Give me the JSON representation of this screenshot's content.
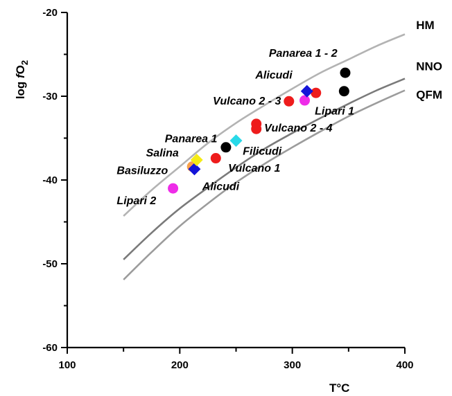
{
  "chart_data": {
    "type": "scatter",
    "title": "",
    "xlabel": "T°C",
    "ylabel_parts": [
      "log ",
      "f",
      "O",
      "2"
    ],
    "xlim": [
      100,
      400
    ],
    "ylim": [
      -60,
      -20
    ],
    "x_ticks": [
      100,
      200,
      300,
      400
    ],
    "x_tick_labels": [
      "100",
      "200",
      "300",
      "400"
    ],
    "y_ticks": [
      -60,
      -50,
      -40,
      -30,
      -20
    ],
    "y_tick_labels": [
      "-60",
      "-50",
      "-40",
      "-30",
      "-20"
    ],
    "grid": false,
    "buffers": [
      {
        "name": "HM",
        "color": "#b3b3b3",
        "x": [
          150,
          175,
          200,
          225,
          250,
          275,
          300,
          325,
          350,
          375,
          400
        ],
        "y": [
          -44.3,
          -41.2,
          -38.4,
          -35.6,
          -33.2,
          -31.1,
          -29.1,
          -27.2,
          -25.6,
          -24.0,
          -22.6
        ]
      },
      {
        "name": "NNO",
        "color": "#7a7a7a",
        "x": [
          150,
          175,
          200,
          225,
          250,
          275,
          300,
          325,
          350,
          375,
          400
        ],
        "y": [
          -49.5,
          -46.3,
          -43.4,
          -40.9,
          -38.5,
          -36.3,
          -34.4,
          -32.6,
          -30.9,
          -29.3,
          -27.9
        ]
      },
      {
        "name": "QFM",
        "color": "#9c9c9c",
        "x": [
          150,
          175,
          200,
          225,
          250,
          275,
          300,
          325,
          350,
          375,
          400
        ],
        "y": [
          -51.9,
          -48.6,
          -45.5,
          -42.8,
          -40.3,
          -38.1,
          -36.1,
          -34.2,
          -32.4,
          -30.8,
          -29.3
        ]
      }
    ],
    "points": [
      {
        "x": 347,
        "y": -27.2,
        "shape": "circle",
        "color": "#000000"
      },
      {
        "x": 346,
        "y": -29.4,
        "shape": "circle",
        "color": "#000000"
      },
      {
        "x": 241,
        "y": -36.1,
        "shape": "circle",
        "color": "#000000"
      },
      {
        "x": 321,
        "y": -29.6,
        "shape": "circle",
        "color": "#ee1c1c"
      },
      {
        "x": 297,
        "y": -30.6,
        "shape": "circle",
        "color": "#ee1c1c"
      },
      {
        "x": 268,
        "y": -33.3,
        "shape": "circle",
        "color": "#ee1c1c"
      },
      {
        "x": 268,
        "y": -33.9,
        "shape": "circle",
        "color": "#ee1c1c"
      },
      {
        "x": 232,
        "y": -37.4,
        "shape": "circle",
        "color": "#ee1c1c"
      },
      {
        "x": 311,
        "y": -30.5,
        "shape": "circle",
        "color": "#ee2ce8"
      },
      {
        "x": 194,
        "y": -41.0,
        "shape": "circle",
        "color": "#ee2ce8"
      },
      {
        "x": 211,
        "y": -38.4,
        "shape": "circle",
        "color": "#f7a04a"
      },
      {
        "x": 313,
        "y": -29.4,
        "shape": "diamond",
        "color": "#1414d8"
      },
      {
        "x": 213,
        "y": -38.7,
        "shape": "diamond",
        "color": "#1414d8"
      },
      {
        "x": 250,
        "y": -35.3,
        "shape": "diamond",
        "color": "#29d9e8"
      },
      {
        "x": 215,
        "y": -37.6,
        "shape": "diamond",
        "color": "#f5eb16"
      }
    ],
    "annotations": [
      {
        "text": "Panarea 1 - 2",
        "x": 340,
        "y": -25.3,
        "anchor": "end"
      },
      {
        "text": "Alicudi",
        "x": 300,
        "y": -27.9,
        "anchor": "end"
      },
      {
        "text": "Vulcano 2 - 3",
        "x": 290,
        "y": -31.0,
        "anchor": "end"
      },
      {
        "text": "Lipari 1",
        "x": 320,
        "y": -32.2,
        "anchor": "start"
      },
      {
        "text": "Vulcano 2 - 4",
        "x": 275,
        "y": -34.2,
        "anchor": "start"
      },
      {
        "text": "Panarea 1",
        "x": 210,
        "y": -35.5,
        "anchor": "middle"
      },
      {
        "text": "Salina",
        "x": 170,
        "y": -37.2,
        "anchor": "start"
      },
      {
        "text": "Filicudi",
        "x": 256,
        "y": -37.0,
        "anchor": "start"
      },
      {
        "text": "Vulcano 1",
        "x": 243,
        "y": -39.0,
        "anchor": "start"
      },
      {
        "text": "Basiluzzo",
        "x": 144,
        "y": -39.3,
        "anchor": "start"
      },
      {
        "text": "Alicudi",
        "x": 220,
        "y": -41.2,
        "anchor": "start"
      },
      {
        "text": "Lipari 2",
        "x": 144,
        "y": -42.9,
        "anchor": "start"
      }
    ],
    "curve_labels": [
      {
        "text": "HM",
        "x": 410,
        "y": -22.0
      },
      {
        "text": "NNO",
        "x": 410,
        "y": -26.9
      },
      {
        "text": "QFM",
        "x": 410,
        "y": -30.3
      }
    ]
  }
}
